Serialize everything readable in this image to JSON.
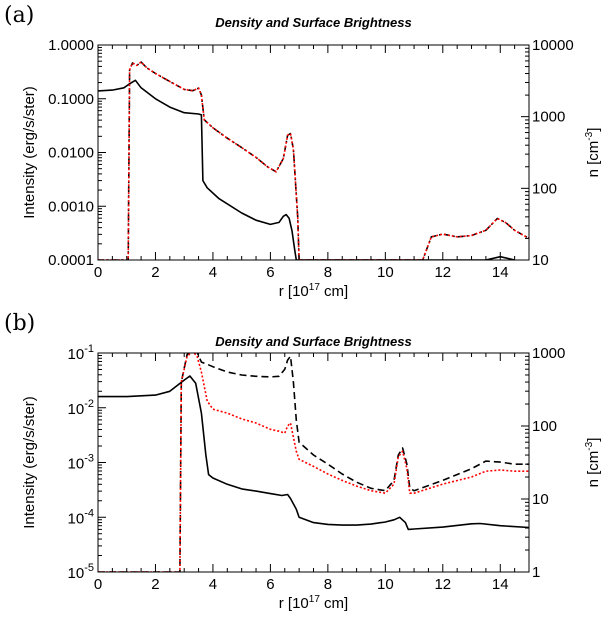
{
  "chart_data": [
    {
      "type": "line",
      "panel_label": "(a)",
      "title": "Density and Surface Brightness",
      "xlabel": {
        "pre": "r [10",
        "sup": "17",
        "post": " cm]"
      },
      "ylabel": "Intensity (erg/s/ster)",
      "y2label": {
        "pre": "n [cm",
        "sup": "-3",
        "post": "]"
      },
      "xlim": [
        0,
        15
      ],
      "xticks": [
        0,
        2,
        4,
        6,
        8,
        10,
        12,
        14
      ],
      "xtick_labels": [
        "0",
        "2",
        "4",
        "6",
        "8",
        "10",
        "12",
        "14"
      ],
      "ylim": [
        0.0001,
        1
      ],
      "yscale": "log",
      "yticks": [
        0.0001,
        0.001,
        0.01,
        0.1,
        1
      ],
      "ytick_labels": [
        "0.0001",
        "0.0010",
        "0.0100",
        "0.1000",
        "1.0000"
      ],
      "y2lim": [
        10,
        10000
      ],
      "y2scale": "log",
      "y2ticks": [
        10,
        100,
        1000,
        10000
      ],
      "y2tick_labels": [
        "10",
        "100",
        "1000",
        "10000"
      ],
      "series": [
        {
          "axis": "left",
          "color": "#000000",
          "dash": "solid",
          "x": [
            0,
            0.5,
            0.9,
            1.1,
            1.3,
            1.5,
            2.0,
            2.5,
            3.0,
            3.5,
            3.6,
            3.65,
            3.8,
            4.2,
            5.0,
            5.5,
            6.0,
            6.3,
            6.45,
            6.55,
            6.65,
            6.75,
            6.85,
            6.9,
            13.5,
            14.0,
            14.5
          ],
          "y": [
            0.14,
            0.145,
            0.16,
            0.19,
            0.22,
            0.16,
            0.1,
            0.07,
            0.055,
            0.052,
            0.05,
            0.003,
            0.0022,
            0.0014,
            0.00075,
            0.00055,
            0.00046,
            0.0005,
            0.00065,
            0.0007,
            0.0006,
            0.00035,
            0.00015,
            0.0001,
            0.0001,
            0.000115,
            0.0001
          ]
        },
        {
          "axis": "right",
          "color": "#000000",
          "dash": "6,3,2,3",
          "x": [
            0,
            1.05,
            1.1,
            1.2,
            1.35,
            1.5,
            1.7,
            2.0,
            2.5,
            3.0,
            3.3,
            3.5,
            3.6,
            3.7,
            4.0,
            4.5,
            5.0,
            5.5,
            5.9,
            6.2,
            6.45,
            6.6,
            6.7,
            6.8,
            6.95,
            7.0,
            11.3,
            11.6,
            12.0,
            12.5,
            13.0,
            13.5,
            13.9,
            14.2,
            14.5,
            15.0
          ],
          "y": [
            10,
            10,
            4500,
            5600,
            5200,
            5800,
            4800,
            4000,
            3100,
            2400,
            2300,
            2500,
            2000,
            900,
            700,
            500,
            370,
            270,
            200,
            170,
            260,
            550,
            580,
            350,
            40,
            10,
            10,
            21,
            23,
            21,
            22,
            26,
            38,
            33,
            26,
            20
          ]
        },
        {
          "axis": "right",
          "color": "#ff0000",
          "dash": "2,2",
          "x": [
            0,
            1.05,
            1.1,
            1.2,
            1.35,
            1.5,
            1.7,
            2.0,
            2.5,
            3.0,
            3.3,
            3.5,
            3.6,
            3.7,
            4.0,
            4.5,
            5.0,
            5.5,
            5.9,
            6.2,
            6.45,
            6.6,
            6.7,
            6.8,
            6.95,
            7.0,
            11.3,
            11.6,
            12.0,
            12.5,
            13.0,
            13.5,
            13.9,
            14.2,
            14.5,
            15.0
          ],
          "y": [
            10,
            10,
            4500,
            5600,
            5200,
            5800,
            4800,
            4000,
            3100,
            2400,
            2300,
            2500,
            2000,
            900,
            700,
            500,
            370,
            270,
            200,
            170,
            260,
            550,
            580,
            350,
            40,
            10,
            10,
            21,
            23,
            21,
            22,
            26,
            38,
            33,
            26,
            20
          ]
        }
      ]
    },
    {
      "type": "line",
      "panel_label": "(b)",
      "title": "Density and Surface Brightness",
      "xlabel": {
        "pre": "r [10",
        "sup": "17",
        "post": " cm]"
      },
      "ylabel": "Intensity (erg/s/ster)",
      "y2label": {
        "pre": "n [cm",
        "sup": "-3",
        "post": "]"
      },
      "xlim": [
        0,
        15
      ],
      "xticks": [
        0,
        2,
        4,
        6,
        8,
        10,
        12,
        14
      ],
      "xtick_labels": [
        "0",
        "2",
        "4",
        "6",
        "8",
        "10",
        "12",
        "14"
      ],
      "ylim": [
        1e-05,
        0.1
      ],
      "yscale": "log",
      "yticks": [
        1e-05,
        0.0001,
        0.001,
        0.01,
        0.1
      ],
      "ytick_labels": [
        {
          "b": "10",
          "e": "-5"
        },
        {
          "b": "10",
          "e": "-4"
        },
        {
          "b": "10",
          "e": "-3"
        },
        {
          "b": "10",
          "e": "-2"
        },
        {
          "b": "10",
          "e": "-1"
        }
      ],
      "y2lim": [
        1,
        1000
      ],
      "y2scale": "log",
      "y2ticks": [
        1,
        10,
        100,
        1000
      ],
      "y2tick_labels": [
        "1",
        "10",
        "100",
        "1000"
      ],
      "series": [
        {
          "axis": "left",
          "color": "#000000",
          "dash": "solid",
          "x": [
            0,
            1.0,
            2.0,
            2.5,
            3.0,
            3.2,
            3.4,
            3.6,
            3.75,
            3.85,
            4.0,
            4.5,
            5.0,
            5.5,
            6.0,
            6.4,
            6.6,
            6.7,
            6.9,
            7.0,
            7.5,
            8.0,
            8.5,
            9.0,
            9.5,
            10.0,
            10.3,
            10.5,
            10.7,
            10.8,
            11.0,
            12.0,
            13.0,
            13.3,
            14.0,
            15.0
          ],
          "y": [
            0.016,
            0.016,
            0.017,
            0.02,
            0.032,
            0.038,
            0.028,
            0.008,
            0.0014,
            0.0006,
            0.00052,
            0.0004,
            0.00033,
            0.0003,
            0.00027,
            0.00025,
            0.00026,
            0.00022,
            0.00014,
            0.0001,
            8e-05,
            7.4e-05,
            7.2e-05,
            7.2e-05,
            7.5e-05,
            8.2e-05,
            9e-05,
            0.0001,
            8e-05,
            6e-05,
            6.1e-05,
            6.6e-05,
            7.6e-05,
            7.7e-05,
            7e-05,
            6.5e-05
          ]
        },
        {
          "axis": "right",
          "color": "#000000",
          "dash": "7,4",
          "x": [
            0,
            2.85,
            2.9,
            3.1,
            3.3,
            3.45,
            3.6,
            3.8,
            4.0,
            4.5,
            5.0,
            5.5,
            6.0,
            6.3,
            6.5,
            6.6,
            6.7,
            6.8,
            6.9,
            7.0,
            7.5,
            8.0,
            8.5,
            9.0,
            9.5,
            10.0,
            10.3,
            10.45,
            10.6,
            10.75,
            10.85,
            11.0,
            12.0,
            13.0,
            13.5,
            14.0,
            14.5,
            15.0
          ],
          "y": [
            1,
            1,
            400,
            950,
            1100,
            1020,
            750,
            700,
            650,
            550,
            500,
            480,
            470,
            480,
            600,
            800,
            900,
            400,
            120,
            60,
            40,
            30,
            22,
            17,
            14,
            13,
            18,
            40,
            50,
            30,
            14,
            13,
            18,
            26,
            33,
            32,
            30,
            30
          ]
        },
        {
          "axis": "right",
          "color": "#ff0000",
          "dash": "2,2",
          "x": [
            0,
            2.85,
            2.9,
            3.1,
            3.3,
            3.45,
            3.6,
            3.8,
            4.0,
            4.5,
            5.0,
            5.5,
            6.0,
            6.3,
            6.5,
            6.6,
            6.7,
            6.8,
            6.9,
            7.0,
            7.5,
            8.0,
            8.5,
            9.0,
            9.5,
            10.0,
            10.3,
            10.45,
            10.6,
            10.75,
            10.85,
            11.0,
            12.0,
            13.0,
            13.5,
            14.0,
            14.5,
            15.0
          ],
          "y": [
            1,
            1,
            400,
            900,
            1050,
            900,
            550,
            220,
            170,
            150,
            125,
            110,
            90,
            85,
            80,
            100,
            110,
            70,
            45,
            35,
            28,
            22,
            18,
            15,
            13,
            12,
            16,
            38,
            45,
            26,
            12,
            12,
            16,
            20,
            24,
            25,
            24,
            24
          ]
        }
      ]
    }
  ]
}
